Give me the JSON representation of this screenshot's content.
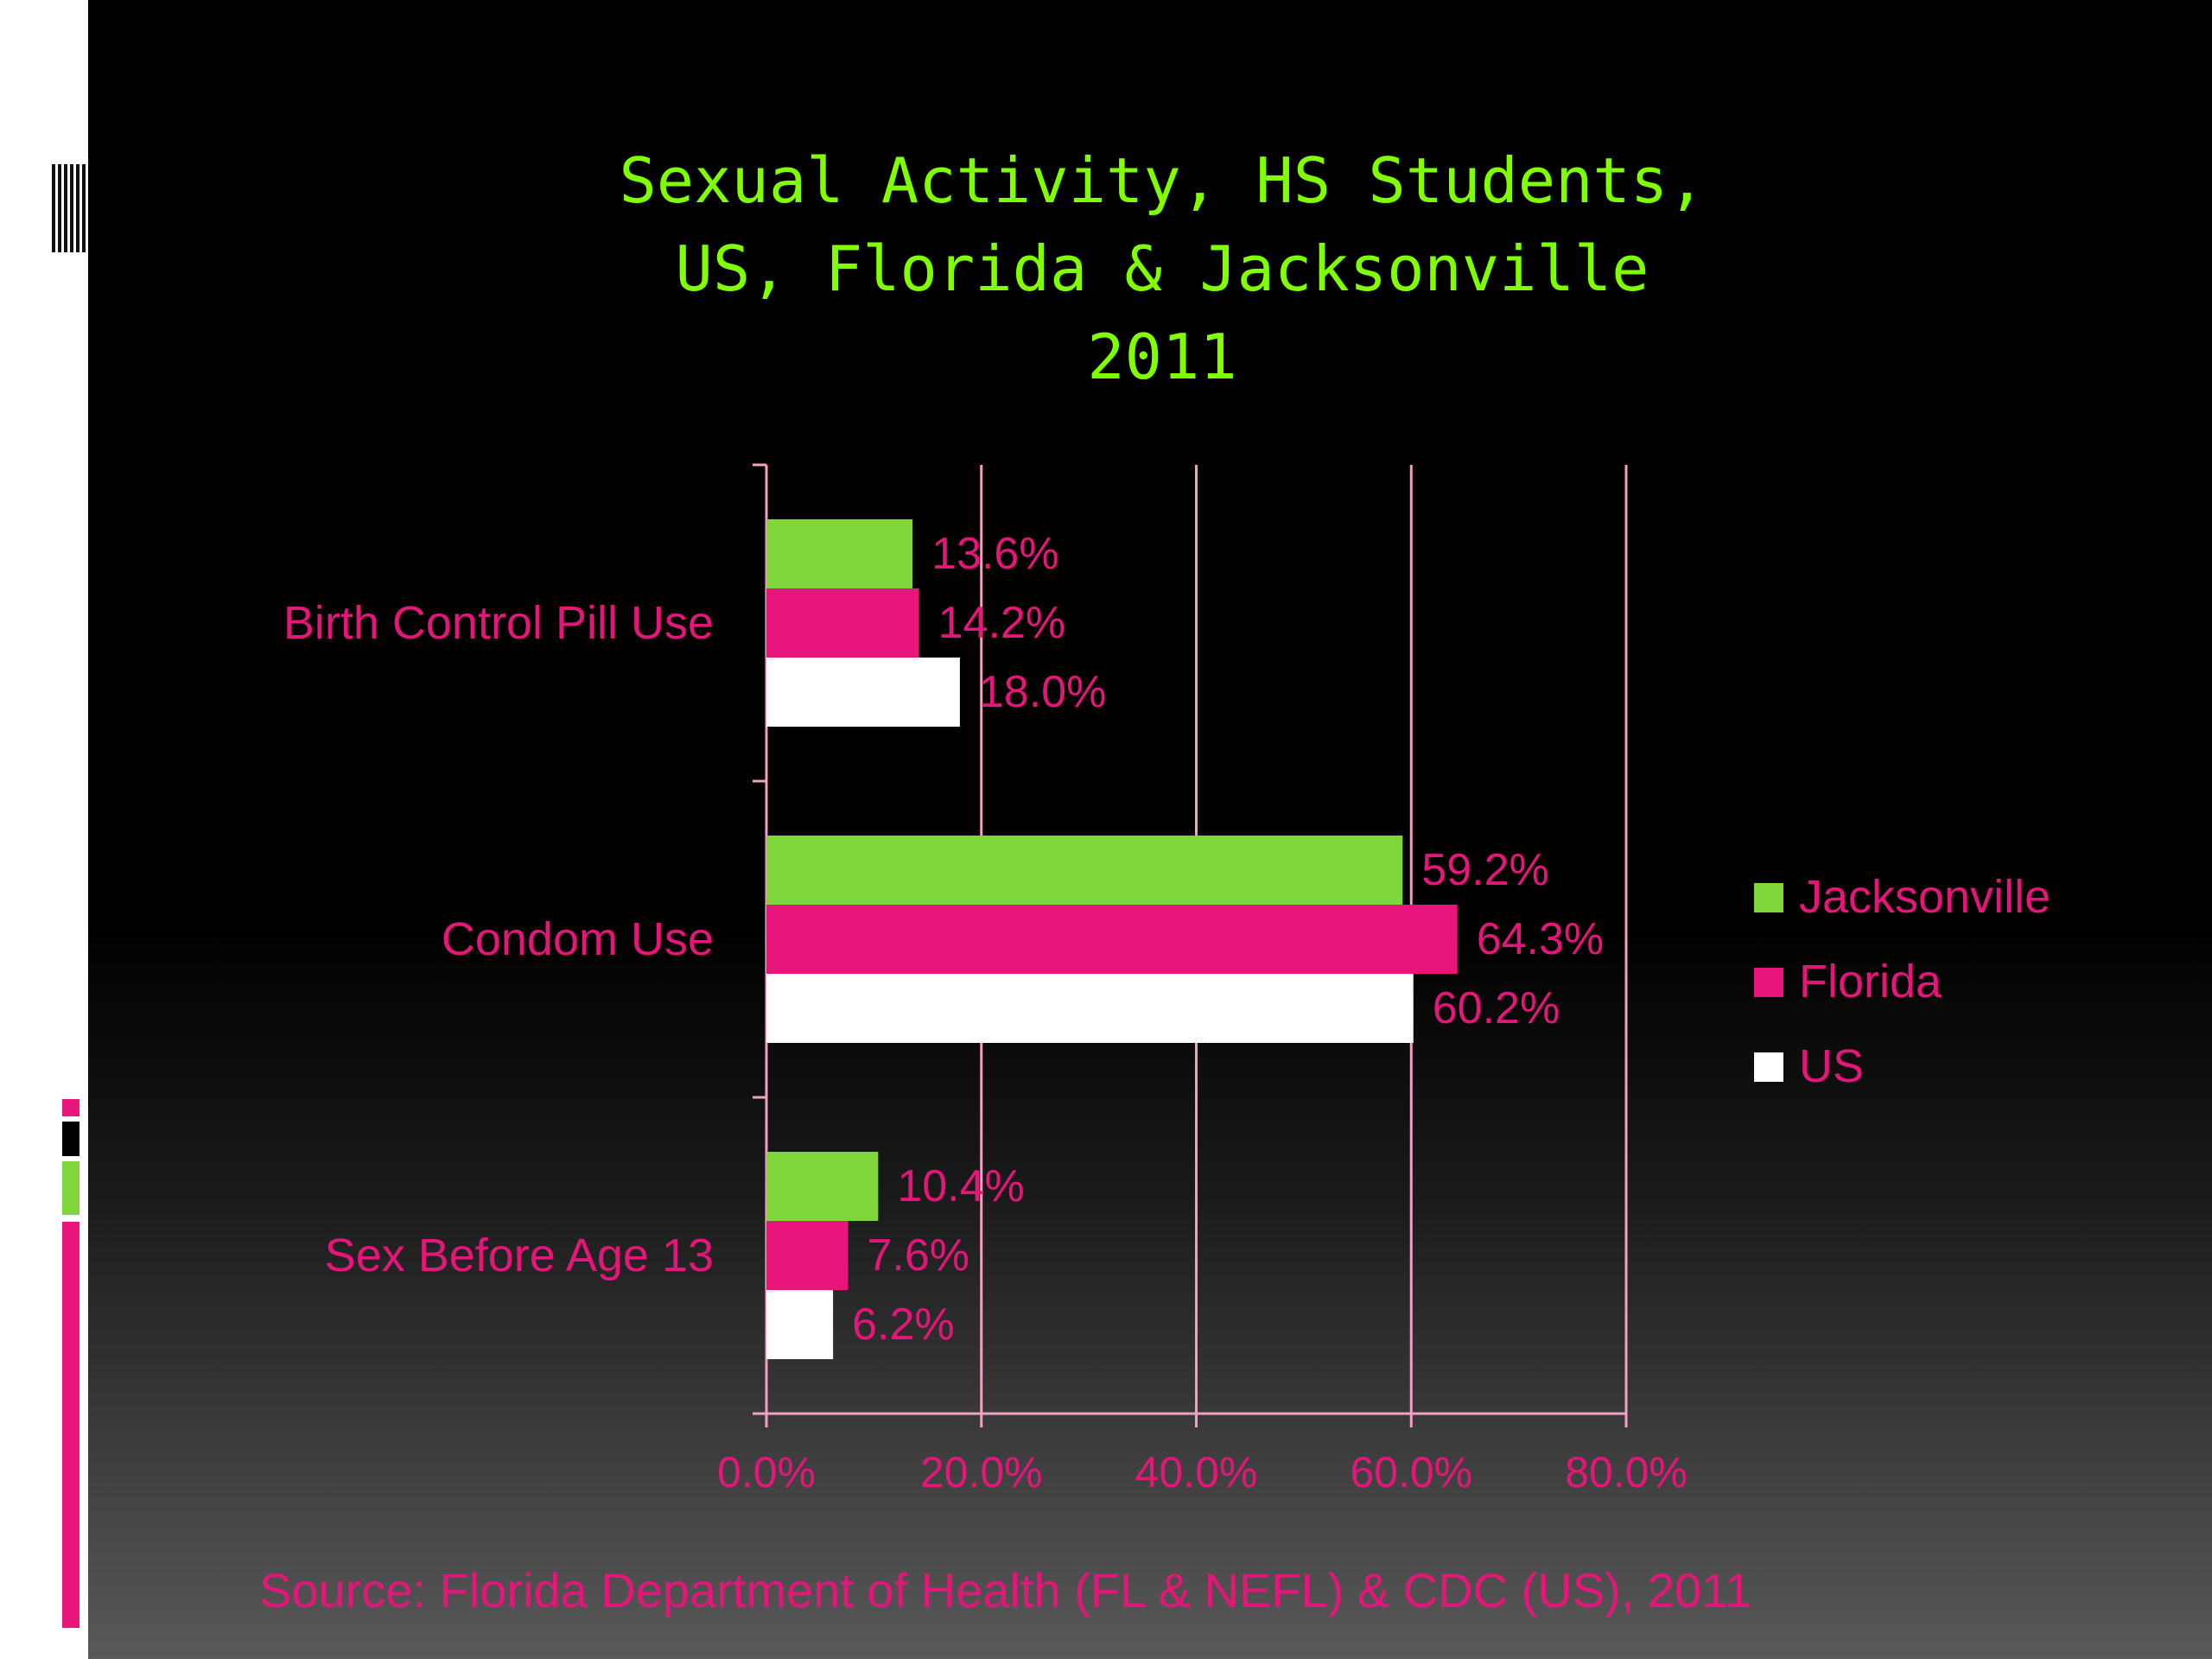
{
  "source_note": "Source: Florida Department of Health (FL & NEFL) & CDC (US), 2011",
  "colors": {
    "title": "#7fff00",
    "text": "#e5167a",
    "axis": "#f2a0c4",
    "Jacksonville": "#7ed63a",
    "Florida": "#e8167a",
    "US": "#ffffff"
  },
  "chart_data": {
    "type": "bar",
    "orientation": "horizontal",
    "title": "Sexual Activity, HS Students,\nUS, Florida & Jacksonville\n2011",
    "categories": [
      "Birth Control Pill Use",
      "Condom Use",
      "Sex Before Age 13"
    ],
    "series": [
      {
        "name": "Jacksonville",
        "values": [
          13.6,
          59.2,
          10.4
        ],
        "labels": [
          "13.6%",
          "59.2%",
          "10.4%"
        ]
      },
      {
        "name": "Florida",
        "values": [
          14.2,
          64.3,
          7.6
        ],
        "labels": [
          "14.2%",
          "64.3%",
          "7.6%"
        ]
      },
      {
        "name": "US",
        "values": [
          18.0,
          60.2,
          6.2
        ],
        "labels": [
          "18.0%",
          "60.2%",
          "6.2%"
        ]
      }
    ],
    "xlim": [
      0,
      80
    ],
    "xticks": [
      0,
      20,
      40,
      60,
      80
    ],
    "xtick_labels": [
      "0.0%",
      "20.0%",
      "40.0%",
      "60.0%",
      "80.0%"
    ],
    "xlabel": "",
    "ylabel": "",
    "grid": "vertical",
    "legend": "right"
  }
}
